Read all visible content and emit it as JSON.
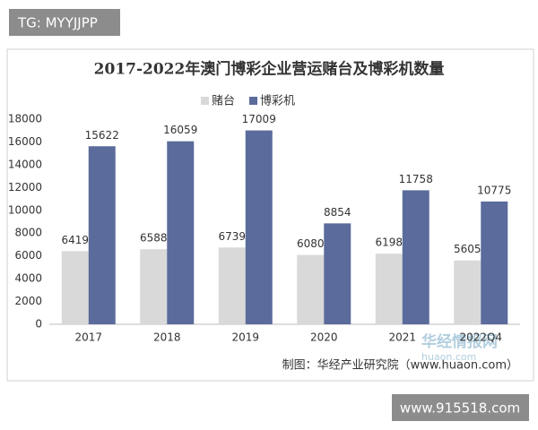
{
  "chart_data": {
    "type": "bar",
    "title": "2017-2022年澳门博彩企业营运赌台及博彩机数量",
    "categories": [
      "2017",
      "2018",
      "2019",
      "2020",
      "2021",
      "2022Q4"
    ],
    "series": [
      {
        "name": "赌台",
        "color": "#d9d9d9",
        "values": [
          6419,
          6588,
          6739,
          6080,
          6198,
          5605
        ]
      },
      {
        "name": "博彩机",
        "color": "#5b6b9b",
        "values": [
          15622,
          16059,
          17009,
          8854,
          11758,
          10775
        ]
      }
    ],
    "ylim": [
      0,
      18000
    ],
    "yticks": [
      0,
      2000,
      4000,
      6000,
      8000,
      10000,
      12000,
      14000,
      16000,
      18000
    ],
    "grid": false,
    "legend": "top",
    "source": "制图：华经产业研究院（www.huaon.com）"
  },
  "watermarks": [
    "TG: MYYJJPP",
    "华经情报网",
    "huaon.com",
    "www.915518.com"
  ]
}
